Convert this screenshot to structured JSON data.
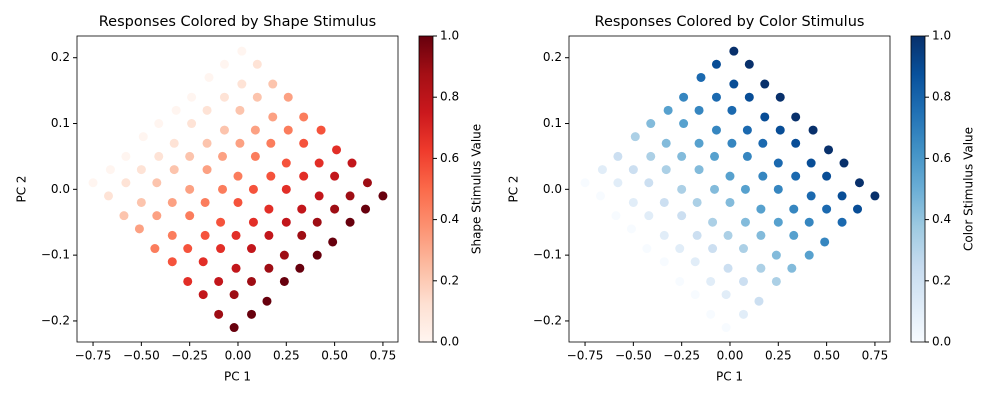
{
  "chart_data": [
    {
      "type": "scatter",
      "title": "Responses Colored by Shape Stimulus",
      "x_label": "PC 1",
      "y_label": "PC 2",
      "colorbar_label": "Shape Stimulus Value",
      "colormap": "Reds",
      "x": [
        -0.75,
        -0.66,
        -0.58,
        -0.49,
        -0.41,
        -0.32,
        -0.24,
        -0.15,
        -0.07,
        0.02,
        -0.67,
        -0.58,
        -0.5,
        -0.41,
        -0.33,
        -0.24,
        -0.16,
        -0.07,
        0.02,
        0.1,
        -0.59,
        -0.5,
        -0.42,
        -0.33,
        -0.25,
        -0.16,
        -0.07,
        0.01,
        0.1,
        0.18,
        -0.51,
        -0.42,
        -0.34,
        -0.25,
        -0.16,
        -0.08,
        0.01,
        0.09,
        0.18,
        0.26,
        -0.43,
        -0.34,
        -0.25,
        -0.17,
        -0.08,
        0.0,
        0.09,
        0.17,
        0.26,
        0.34,
        -0.34,
        -0.26,
        -0.17,
        -0.09,
        0.0,
        0.08,
        0.17,
        0.25,
        0.34,
        0.43,
        -0.26,
        -0.18,
        -0.09,
        -0.01,
        0.08,
        0.16,
        0.25,
        0.34,
        0.42,
        0.51,
        -0.18,
        -0.1,
        -0.01,
        0.07,
        0.16,
        0.25,
        0.33,
        0.42,
        0.5,
        0.59,
        -0.1,
        -0.02,
        0.07,
        0.16,
        0.24,
        0.33,
        0.41,
        0.5,
        0.58,
        0.67,
        -0.02,
        0.07,
        0.15,
        0.24,
        0.32,
        0.41,
        0.49,
        0.58,
        0.66,
        0.75
      ],
      "y": [
        0.01,
        0.03,
        0.05,
        0.08,
        0.1,
        0.12,
        0.14,
        0.17,
        0.19,
        0.21,
        -0.01,
        0.01,
        0.03,
        0.05,
        0.07,
        0.1,
        0.12,
        0.14,
        0.16,
        0.19,
        -0.04,
        -0.02,
        0.01,
        0.03,
        0.05,
        0.07,
        0.09,
        0.12,
        0.14,
        0.16,
        -0.06,
        -0.04,
        -0.02,
        0.0,
        0.03,
        0.05,
        0.07,
        0.09,
        0.11,
        0.14,
        -0.09,
        -0.07,
        -0.04,
        -0.02,
        0.0,
        0.02,
        0.05,
        0.07,
        0.09,
        0.11,
        -0.11,
        -0.09,
        -0.07,
        -0.05,
        -0.02,
        0.0,
        0.02,
        0.04,
        0.07,
        0.09,
        -0.14,
        -0.11,
        -0.09,
        -0.07,
        -0.05,
        -0.03,
        0.0,
        0.02,
        0.04,
        0.06,
        -0.16,
        -0.14,
        -0.12,
        -0.09,
        -0.07,
        -0.05,
        -0.03,
        -0.01,
        0.02,
        0.04,
        -0.19,
        -0.16,
        -0.14,
        -0.12,
        -0.1,
        -0.07,
        -0.05,
        -0.03,
        -0.01,
        0.01,
        -0.21,
        -0.19,
        -0.17,
        -0.14,
        -0.12,
        -0.1,
        -0.08,
        -0.05,
        -0.03,
        -0.01
      ],
      "color_values": [
        0,
        0,
        0,
        0,
        0,
        0,
        0,
        0,
        0,
        0,
        0.11,
        0.11,
        0.11,
        0.11,
        0.11,
        0.11,
        0.11,
        0.11,
        0.11,
        0.11,
        0.22,
        0.22,
        0.22,
        0.22,
        0.22,
        0.22,
        0.22,
        0.22,
        0.22,
        0.22,
        0.33,
        0.33,
        0.33,
        0.33,
        0.33,
        0.33,
        0.33,
        0.33,
        0.33,
        0.33,
        0.44,
        0.44,
        0.44,
        0.44,
        0.44,
        0.44,
        0.44,
        0.44,
        0.44,
        0.44,
        0.56,
        0.56,
        0.56,
        0.56,
        0.56,
        0.56,
        0.56,
        0.56,
        0.56,
        0.56,
        0.67,
        0.67,
        0.67,
        0.67,
        0.67,
        0.67,
        0.67,
        0.67,
        0.67,
        0.67,
        0.78,
        0.78,
        0.78,
        0.78,
        0.78,
        0.78,
        0.78,
        0.78,
        0.78,
        0.78,
        0.89,
        0.89,
        0.89,
        0.89,
        0.89,
        0.89,
        0.89,
        0.89,
        0.89,
        0.89,
        1,
        1,
        1,
        1,
        1,
        1,
        1,
        1,
        1,
        1
      ],
      "xlim": [
        -0.833,
        0.828
      ],
      "ylim": [
        -0.232,
        0.233
      ],
      "clim": [
        0,
        1
      ],
      "xticks": [
        {
          "value": -0.75,
          "label": "−0.75"
        },
        {
          "value": -0.5,
          "label": "−0.50"
        },
        {
          "value": -0.25,
          "label": "−0.25"
        },
        {
          "value": 0,
          "label": "0.00"
        },
        {
          "value": 0.25,
          "label": "0.25"
        },
        {
          "value": 0.5,
          "label": "0.50"
        },
        {
          "value": 0.75,
          "label": "0.75"
        }
      ],
      "yticks": [
        {
          "value": -0.2,
          "label": "−0.2"
        },
        {
          "value": -0.1,
          "label": "−0.1"
        },
        {
          "value": 0,
          "label": "0.0"
        },
        {
          "value": 0.1,
          "label": "0.1"
        },
        {
          "value": 0.2,
          "label": "0.2"
        }
      ],
      "cticks": [
        {
          "value": 0,
          "label": "0.0"
        },
        {
          "value": 0.2,
          "label": "0.2"
        },
        {
          "value": 0.4,
          "label": "0.4"
        },
        {
          "value": 0.6,
          "label": "0.6"
        },
        {
          "value": 0.8,
          "label": "0.8"
        },
        {
          "value": 1,
          "label": "1.0"
        }
      ]
    },
    {
      "type": "scatter",
      "title": "Responses Colored by Color Stimulus",
      "x_label": "PC 1",
      "y_label": "PC 2",
      "colorbar_label": "Color Stimulus Value",
      "colormap": "Blues",
      "x": [
        -0.75,
        -0.66,
        -0.58,
        -0.49,
        -0.41,
        -0.32,
        -0.24,
        -0.15,
        -0.07,
        0.02,
        -0.67,
        -0.58,
        -0.5,
        -0.41,
        -0.33,
        -0.24,
        -0.16,
        -0.07,
        0.02,
        0.1,
        -0.59,
        -0.5,
        -0.42,
        -0.33,
        -0.25,
        -0.16,
        -0.07,
        0.01,
        0.1,
        0.18,
        -0.51,
        -0.42,
        -0.34,
        -0.25,
        -0.16,
        -0.08,
        0.01,
        0.09,
        0.18,
        0.26,
        -0.43,
        -0.34,
        -0.25,
        -0.17,
        -0.08,
        0.0,
        0.09,
        0.17,
        0.26,
        0.34,
        -0.34,
        -0.26,
        -0.17,
        -0.09,
        0.0,
        0.08,
        0.17,
        0.25,
        0.34,
        0.43,
        -0.26,
        -0.18,
        -0.09,
        -0.01,
        0.08,
        0.16,
        0.25,
        0.34,
        0.42,
        0.51,
        -0.18,
        -0.1,
        -0.01,
        0.07,
        0.16,
        0.25,
        0.33,
        0.42,
        0.5,
        0.59,
        -0.1,
        -0.02,
        0.07,
        0.16,
        0.24,
        0.33,
        0.41,
        0.5,
        0.58,
        0.67,
        -0.02,
        0.07,
        0.15,
        0.24,
        0.32,
        0.41,
        0.49,
        0.58,
        0.66,
        0.75
      ],
      "y": [
        0.01,
        0.03,
        0.05,
        0.08,
        0.1,
        0.12,
        0.14,
        0.17,
        0.19,
        0.21,
        -0.01,
        0.01,
        0.03,
        0.05,
        0.07,
        0.1,
        0.12,
        0.14,
        0.16,
        0.19,
        -0.04,
        -0.02,
        0.01,
        0.03,
        0.05,
        0.07,
        0.09,
        0.12,
        0.14,
        0.16,
        -0.06,
        -0.04,
        -0.02,
        0.0,
        0.03,
        0.05,
        0.07,
        0.09,
        0.11,
        0.14,
        -0.09,
        -0.07,
        -0.04,
        -0.02,
        0.0,
        0.02,
        0.05,
        0.07,
        0.09,
        0.11,
        -0.11,
        -0.09,
        -0.07,
        -0.05,
        -0.02,
        0.0,
        0.02,
        0.04,
        0.07,
        0.09,
        -0.14,
        -0.11,
        -0.09,
        -0.07,
        -0.05,
        -0.03,
        0.0,
        0.02,
        0.04,
        0.06,
        -0.16,
        -0.14,
        -0.12,
        -0.09,
        -0.07,
        -0.05,
        -0.03,
        -0.01,
        0.02,
        0.04,
        -0.19,
        -0.16,
        -0.14,
        -0.12,
        -0.1,
        -0.07,
        -0.05,
        -0.03,
        -0.01,
        0.01,
        -0.21,
        -0.19,
        -0.17,
        -0.14,
        -0.12,
        -0.1,
        -0.08,
        -0.05,
        -0.03,
        -0.01
      ],
      "color_values": [
        0,
        0.11,
        0.22,
        0.33,
        0.44,
        0.56,
        0.67,
        0.78,
        0.89,
        1,
        0,
        0.11,
        0.22,
        0.33,
        0.44,
        0.56,
        0.67,
        0.78,
        0.89,
        1,
        0,
        0.11,
        0.22,
        0.33,
        0.44,
        0.56,
        0.67,
        0.78,
        0.89,
        1,
        0,
        0.11,
        0.22,
        0.33,
        0.44,
        0.56,
        0.67,
        0.78,
        0.89,
        1,
        0,
        0.11,
        0.22,
        0.33,
        0.44,
        0.56,
        0.67,
        0.78,
        0.89,
        1,
        0,
        0.11,
        0.22,
        0.33,
        0.44,
        0.56,
        0.67,
        0.78,
        0.89,
        1,
        0,
        0.11,
        0.22,
        0.33,
        0.44,
        0.56,
        0.67,
        0.78,
        0.89,
        1,
        0,
        0.11,
        0.22,
        0.33,
        0.44,
        0.56,
        0.67,
        0.78,
        0.89,
        1,
        0,
        0.11,
        0.22,
        0.33,
        0.44,
        0.56,
        0.67,
        0.78,
        0.89,
        1,
        0,
        0.11,
        0.22,
        0.33,
        0.44,
        0.56,
        0.67,
        0.78,
        0.89,
        1
      ],
      "xlim": [
        -0.833,
        0.828
      ],
      "ylim": [
        -0.232,
        0.233
      ],
      "clim": [
        0,
        1
      ],
      "xticks": [
        {
          "value": -0.75,
          "label": "−0.75"
        },
        {
          "value": -0.5,
          "label": "−0.50"
        },
        {
          "value": -0.25,
          "label": "−0.25"
        },
        {
          "value": 0,
          "label": "0.00"
        },
        {
          "value": 0.25,
          "label": "0.25"
        },
        {
          "value": 0.5,
          "label": "0.50"
        },
        {
          "value": 0.75,
          "label": "0.75"
        }
      ],
      "yticks": [
        {
          "value": -0.2,
          "label": "−0.2"
        },
        {
          "value": -0.1,
          "label": "−0.1"
        },
        {
          "value": 0,
          "label": "0.0"
        },
        {
          "value": 0.1,
          "label": "0.1"
        },
        {
          "value": 0.2,
          "label": "0.2"
        }
      ],
      "cticks": [
        {
          "value": 0,
          "label": "0.0"
        },
        {
          "value": 0.2,
          "label": "0.2"
        },
        {
          "value": 0.4,
          "label": "0.4"
        },
        {
          "value": 0.6,
          "label": "0.6"
        },
        {
          "value": 0.8,
          "label": "0.8"
        },
        {
          "value": 1,
          "label": "1.0"
        }
      ]
    }
  ]
}
